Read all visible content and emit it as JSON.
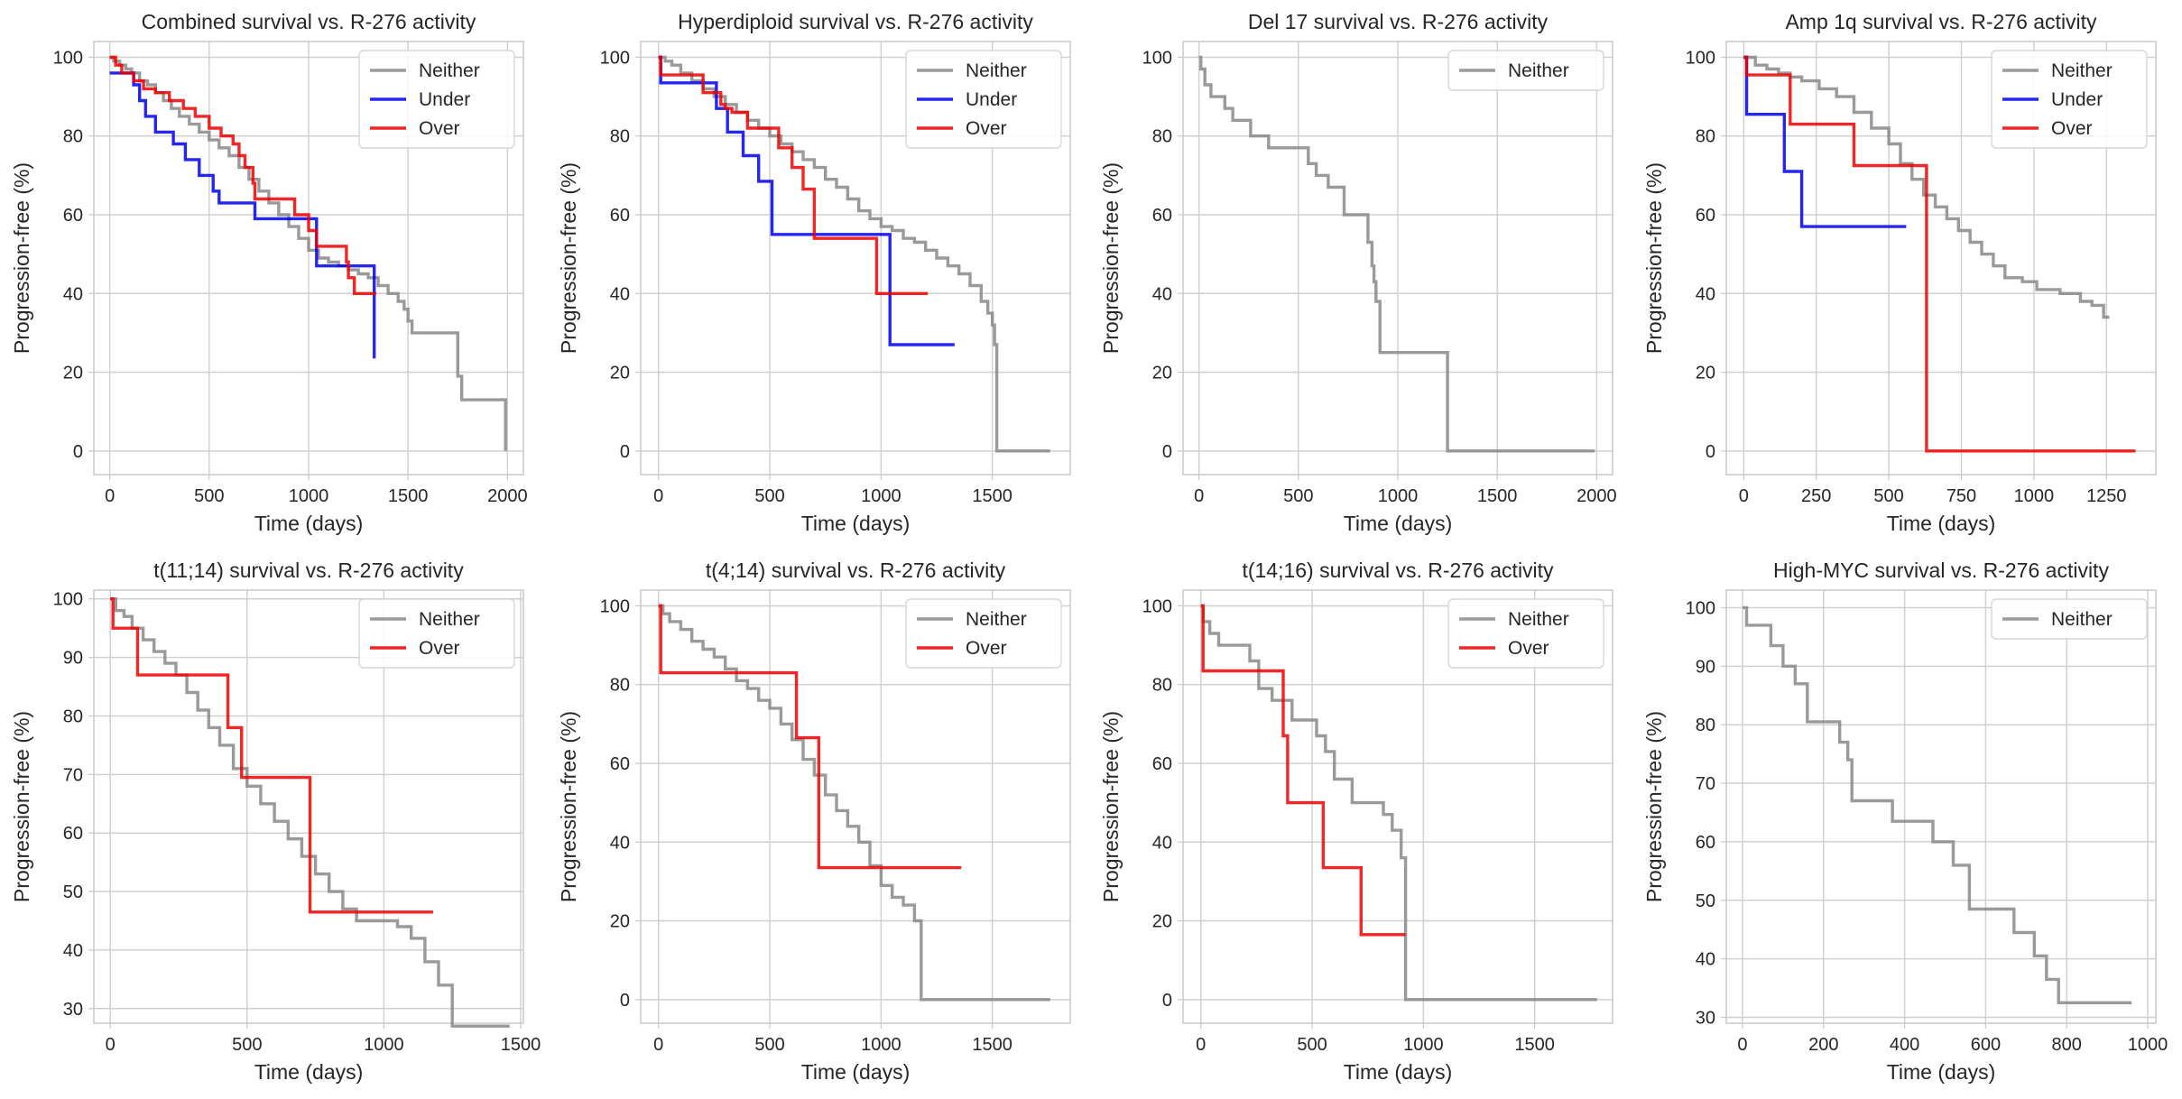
{
  "chart_data": [
    {
      "type": "line",
      "title": "Combined survival vs. R-276 activity",
      "xlabel": "Time (days)",
      "ylabel": "Progression-free (%)",
      "xlim": [
        -80,
        2080
      ],
      "ylim": [
        -6,
        104
      ],
      "xticks": [
        0,
        500,
        1000,
        1500,
        2000
      ],
      "yticks": [
        0,
        20,
        40,
        60,
        80,
        100
      ],
      "legend": "top-right",
      "grid": true,
      "series": [
        {
          "name": "Neither",
          "color": "#888888",
          "x": [
            0,
            20,
            50,
            80,
            110,
            150,
            190,
            230,
            270,
            310,
            350,
            400,
            450,
            500,
            550,
            600,
            650,
            700,
            750,
            800,
            850,
            900,
            950,
            1000,
            1050,
            1100,
            1150,
            1200,
            1250,
            1300,
            1350,
            1400,
            1450,
            1480,
            1500,
            1520,
            1750,
            1760,
            1770,
            1990
          ],
          "y": [
            100,
            99,
            98,
            97,
            96,
            94,
            93,
            91,
            89,
            87,
            85,
            83,
            81,
            79,
            77,
            75,
            72,
            69,
            66,
            63,
            60,
            57,
            54,
            51,
            49,
            48,
            47,
            46,
            45,
            44,
            42,
            40,
            38,
            36,
            33,
            30,
            19,
            19,
            13,
            0
          ]
        },
        {
          "name": "Under",
          "color": "#0000ee",
          "x": [
            0,
            20,
            120,
            150,
            180,
            230,
            320,
            380,
            450,
            520,
            550,
            730,
            1040,
            1330
          ],
          "y": [
            96,
            96,
            93,
            89,
            85,
            81,
            78,
            74,
            70,
            66,
            63,
            59,
            47,
            23.5
          ]
        },
        {
          "name": "Over",
          "color": "#ee0000",
          "x": [
            0,
            30,
            60,
            120,
            170,
            230,
            300,
            370,
            430,
            500,
            560,
            620,
            650,
            680,
            720,
            730,
            930,
            1000,
            1040,
            1180,
            1190,
            1200,
            1230,
            1340
          ],
          "y": [
            100,
            98,
            96,
            94,
            92,
            91,
            89,
            87,
            85,
            82,
            80,
            78,
            75,
            72,
            68,
            64,
            60,
            56,
            52,
            52,
            48,
            44,
            40,
            40
          ]
        }
      ]
    },
    {
      "type": "line",
      "title": "Hyperdiploid survival vs. R-276 activity",
      "xlabel": "Time (days)",
      "ylabel": "Progression-free (%)",
      "xlim": [
        -80,
        1850
      ],
      "ylim": [
        -6,
        104
      ],
      "xticks": [
        0,
        500,
        1000,
        1500
      ],
      "yticks": [
        0,
        20,
        40,
        60,
        80,
        100
      ],
      "legend": "top-right",
      "grid": true,
      "series": [
        {
          "name": "Neither",
          "color": "#888888",
          "x": [
            0,
            30,
            60,
            100,
            150,
            200,
            250,
            300,
            350,
            400,
            450,
            500,
            550,
            600,
            650,
            700,
            750,
            800,
            850,
            900,
            950,
            1000,
            1050,
            1100,
            1150,
            1200,
            1250,
            1300,
            1350,
            1400,
            1450,
            1480,
            1500,
            1510,
            1520,
            1760
          ],
          "y": [
            100,
            99,
            98,
            96,
            94,
            92,
            90,
            88,
            86,
            84,
            82,
            80,
            78,
            76,
            74,
            72,
            69,
            67,
            64,
            61,
            59,
            57,
            56,
            54,
            53,
            51,
            49,
            47,
            45,
            42,
            38,
            35,
            32,
            27,
            0,
            0
          ]
        },
        {
          "name": "Under",
          "color": "#0000ee",
          "x": [
            0,
            10,
            260,
            310,
            380,
            450,
            510,
            1040,
            1330
          ],
          "y": [
            100,
            93.5,
            87,
            81,
            75,
            68.5,
            55,
            27,
            27
          ]
        },
        {
          "name": "Over",
          "color": "#ee0000",
          "x": [
            0,
            10,
            200,
            280,
            300,
            330,
            400,
            540,
            600,
            650,
            700,
            980,
            1000,
            1210
          ],
          "y": [
            100,
            95.5,
            91,
            88,
            87,
            86,
            82,
            77,
            72,
            66.5,
            54,
            40,
            40,
            40
          ]
        }
      ]
    },
    {
      "type": "line",
      "title": "Del 17 survival vs. R-276 activity",
      "xlabel": "Time (days)",
      "ylabel": "Progression-free (%)",
      "xlim": [
        -80,
        2080
      ],
      "ylim": [
        -6,
        104
      ],
      "xticks": [
        0,
        500,
        1000,
        1500,
        2000
      ],
      "yticks": [
        0,
        20,
        40,
        60,
        80,
        100
      ],
      "legend": "top-right",
      "grid": true,
      "series": [
        {
          "name": "Neither",
          "color": "#888888",
          "x": [
            0,
            10,
            30,
            60,
            130,
            170,
            260,
            350,
            550,
            590,
            650,
            730,
            850,
            870,
            880,
            890,
            910,
            1250,
            1990
          ],
          "y": [
            100,
            97,
            93,
            90,
            87,
            84,
            80,
            77,
            73,
            70,
            67,
            60,
            53,
            47,
            43,
            38,
            25,
            0,
            0
          ]
        }
      ]
    },
    {
      "type": "line",
      "title": "Amp 1q survival vs. R-276 activity",
      "xlabel": "Time (days)",
      "ylabel": "Progression-free (%)",
      "xlim": [
        -60,
        1420
      ],
      "ylim": [
        -6,
        104
      ],
      "xticks": [
        0,
        250,
        500,
        750,
        1000,
        1250
      ],
      "yticks": [
        0,
        20,
        40,
        60,
        80,
        100
      ],
      "legend": "top-right",
      "grid": true,
      "series": [
        {
          "name": "Neither",
          "color": "#888888",
          "x": [
            0,
            40,
            80,
            120,
            160,
            200,
            260,
            320,
            380,
            440,
            500,
            540,
            580,
            620,
            660,
            700,
            740,
            780,
            820,
            860,
            900,
            960,
            1010,
            1090,
            1160,
            1200,
            1240,
            1260
          ],
          "y": [
            100,
            98,
            97,
            96,
            95,
            94,
            92,
            90,
            86,
            82,
            78,
            73,
            69,
            65,
            62,
            59,
            56,
            53,
            50,
            47,
            44,
            43,
            41,
            40,
            38,
            37,
            34,
            34
          ]
        },
        {
          "name": "Under",
          "color": "#0000ee",
          "x": [
            0,
            10,
            140,
            200,
            560
          ],
          "y": [
            100,
            85.5,
            71,
            57,
            57
          ]
        },
        {
          "name": "Over",
          "color": "#ee0000",
          "x": [
            0,
            10,
            160,
            380,
            630,
            1350
          ],
          "y": [
            100,
            95.5,
            83,
            72.5,
            0,
            0
          ]
        }
      ]
    },
    {
      "type": "line",
      "title": "t(11;14) survival vs. R-276 activity",
      "xlabel": "Time (days)",
      "ylabel": "Progression-free (%)",
      "xlim": [
        -60,
        1510
      ],
      "ylim": [
        27.5,
        101.5
      ],
      "xticks": [
        0,
        500,
        1000,
        1500
      ],
      "yticks": [
        30,
        40,
        50,
        60,
        70,
        80,
        90,
        100
      ],
      "legend": "top-right",
      "grid": true,
      "series": [
        {
          "name": "Neither",
          "color": "#888888",
          "x": [
            0,
            20,
            50,
            80,
            120,
            160,
            200,
            240,
            280,
            320,
            360,
            400,
            450,
            500,
            550,
            600,
            650,
            700,
            750,
            800,
            850,
            900,
            950,
            1000,
            1050,
            1100,
            1150,
            1200,
            1250,
            1460
          ],
          "y": [
            100,
            98,
            97,
            95,
            93,
            91,
            89,
            87,
            84,
            81,
            78,
            75,
            71,
            68,
            65,
            62,
            59,
            56,
            53,
            50,
            47,
            45,
            45,
            45,
            44,
            42,
            38,
            34,
            27,
            27
          ]
        },
        {
          "name": "Over",
          "color": "#ee0000",
          "x": [
            0,
            10,
            100,
            430,
            480,
            730,
            1180
          ],
          "y": [
            100,
            95,
            87,
            78,
            69.5,
            46.5,
            46.5
          ]
        }
      ]
    },
    {
      "type": "line",
      "title": "t(4;14) survival vs. R-276 activity",
      "xlabel": "Time (days)",
      "ylabel": "Progression-free (%)",
      "xlim": [
        -80,
        1850
      ],
      "ylim": [
        -6,
        104
      ],
      "xticks": [
        0,
        500,
        1000,
        1500
      ],
      "yticks": [
        0,
        20,
        40,
        60,
        80,
        100
      ],
      "legend": "top-right",
      "grid": true,
      "series": [
        {
          "name": "Neither",
          "color": "#888888",
          "x": [
            0,
            20,
            50,
            100,
            150,
            200,
            250,
            300,
            350,
            400,
            450,
            500,
            550,
            600,
            650,
            700,
            750,
            800,
            850,
            900,
            950,
            1000,
            1050,
            1100,
            1150,
            1180,
            1760
          ],
          "y": [
            100,
            98,
            96,
            94,
            91,
            89,
            87,
            84,
            81,
            79,
            76,
            74,
            70,
            66,
            61,
            57,
            52,
            48,
            44,
            40,
            34,
            29,
            26,
            24,
            20,
            0,
            0
          ]
        },
        {
          "name": "Over",
          "color": "#ee0000",
          "x": [
            0,
            10,
            620,
            720,
            1360
          ],
          "y": [
            100,
            83,
            66.5,
            33.5,
            33.5
          ]
        }
      ]
    },
    {
      "type": "line",
      "title": "t(14;16) survival vs. R-276 activity",
      "xlabel": "Time (days)",
      "ylabel": "Progression-free (%)",
      "xlim": [
        -80,
        1850
      ],
      "ylim": [
        -6,
        104
      ],
      "xticks": [
        0,
        500,
        1000,
        1500
      ],
      "yticks": [
        0,
        20,
        40,
        60,
        80,
        100
      ],
      "legend": "top-right",
      "grid": true,
      "series": [
        {
          "name": "Neither",
          "color": "#888888",
          "x": [
            0,
            10,
            40,
            80,
            220,
            260,
            320,
            410,
            520,
            560,
            600,
            680,
            820,
            860,
            900,
            920,
            1780
          ],
          "y": [
            100,
            96,
            93,
            90,
            86,
            79,
            76,
            71,
            67,
            63,
            56,
            50,
            47,
            43,
            36,
            0,
            0
          ]
        },
        {
          "name": "Over",
          "color": "#ee0000",
          "x": [
            0,
            10,
            370,
            390,
            550,
            720,
            920
          ],
          "y": [
            100,
            83.5,
            67,
            50,
            33.5,
            16.5,
            16.5
          ]
        }
      ]
    },
    {
      "type": "line",
      "title": "High-MYC survival vs. R-276 activity",
      "xlabel": "Time (days)",
      "ylabel": "Progression-free (%)",
      "xlim": [
        -40,
        1020
      ],
      "ylim": [
        29,
        103
      ],
      "xticks": [
        0,
        200,
        400,
        600,
        800,
        1000
      ],
      "yticks": [
        30,
        40,
        50,
        60,
        70,
        80,
        90,
        100
      ],
      "legend": "top-right",
      "grid": true,
      "series": [
        {
          "name": "Neither",
          "color": "#888888",
          "x": [
            0,
            10,
            70,
            100,
            130,
            160,
            240,
            260,
            270,
            370,
            470,
            520,
            560,
            670,
            720,
            750,
            780,
            960
          ],
          "y": [
            100,
            97,
            93.5,
            90,
            87,
            80.5,
            77,
            74,
            67,
            63.5,
            60,
            56,
            48.5,
            44.5,
            40.5,
            36.5,
            32.5,
            32.5
          ]
        }
      ]
    }
  ]
}
